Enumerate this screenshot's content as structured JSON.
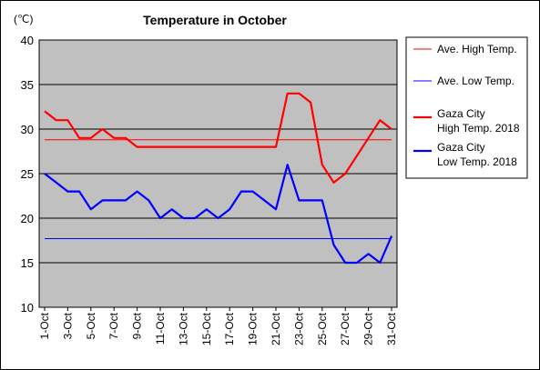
{
  "chart_data": {
    "type": "line",
    "title": "Temperature in October",
    "ylabel": "(℃)",
    "ylim": [
      10,
      40
    ],
    "yticks": [
      10,
      15,
      20,
      25,
      30,
      35,
      40
    ],
    "x": [
      1,
      2,
      3,
      4,
      5,
      6,
      7,
      8,
      9,
      10,
      11,
      12,
      13,
      14,
      15,
      16,
      17,
      18,
      19,
      20,
      21,
      22,
      23,
      24,
      25,
      26,
      27,
      28,
      29,
      30,
      31
    ],
    "xtick_labels": [
      "1-Oct",
      "3-Oct",
      "5-Oct",
      "7-Oct",
      "9-Oct",
      "11-Oct",
      "13-Oct",
      "15-Oct",
      "17-Oct",
      "19-Oct",
      "21-Oct",
      "23-Oct",
      "25-Oct",
      "27-Oct",
      "29-Oct",
      "31-Oct"
    ],
    "grid": "horizontal",
    "background": "#c0c0c0",
    "legend_position": "right",
    "series": [
      {
        "name": "Ave. High Temp.",
        "color": "#ff0000",
        "style": "thin",
        "values": [
          28.8,
          28.8,
          28.8,
          28.8,
          28.8,
          28.8,
          28.8,
          28.8,
          28.8,
          28.8,
          28.8,
          28.8,
          28.8,
          28.8,
          28.8,
          28.8,
          28.8,
          28.8,
          28.8,
          28.8,
          28.8,
          28.8,
          28.8,
          28.8,
          28.8,
          28.8,
          28.8,
          28.8,
          28.8,
          28.8,
          28.8
        ]
      },
      {
        "name": "Ave. Low Temp.",
        "color": "#0000ff",
        "style": "thin",
        "values": [
          17.7,
          17.7,
          17.7,
          17.7,
          17.7,
          17.7,
          17.7,
          17.7,
          17.7,
          17.7,
          17.7,
          17.7,
          17.7,
          17.7,
          17.7,
          17.7,
          17.7,
          17.7,
          17.7,
          17.7,
          17.7,
          17.7,
          17.7,
          17.7,
          17.7,
          17.7,
          17.7,
          17.7,
          17.7,
          17.7,
          17.7
        ]
      },
      {
        "name": "Gaza City High Temp. 2018",
        "name_lines": [
          "Gaza City",
          "High Temp. 2018"
        ],
        "color": "#ff0000",
        "style": "thick",
        "values": [
          32,
          31,
          31,
          29,
          29,
          30,
          29,
          29,
          28,
          28,
          28,
          28,
          28,
          28,
          28,
          28,
          28,
          28,
          28,
          28,
          28,
          34,
          34,
          33,
          26,
          24,
          25,
          27,
          29,
          31,
          30
        ]
      },
      {
        "name": "Gaza City Low Temp. 2018",
        "name_lines": [
          "Gaza City",
          "Low Temp. 2018"
        ],
        "color": "#0000ff",
        "style": "thick",
        "values": [
          25,
          24,
          23,
          23,
          21,
          22,
          22,
          22,
          23,
          22,
          20,
          21,
          20,
          20,
          21,
          20,
          21,
          23,
          23,
          22,
          21,
          26,
          22,
          22,
          22,
          17,
          15,
          15,
          16,
          15,
          18
        ]
      }
    ]
  }
}
